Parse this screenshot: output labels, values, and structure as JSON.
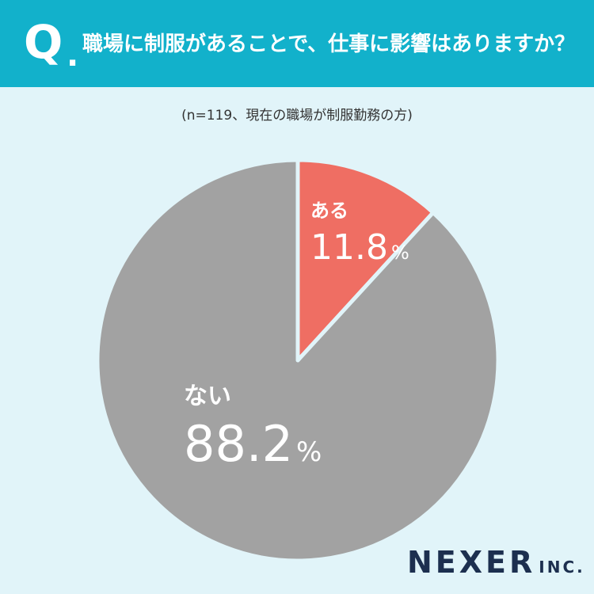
{
  "header": {
    "q_mark": "Q",
    "q_dot": ".",
    "question": "職場に制服があることで、仕事に影響はありますか？"
  },
  "note": "(n=119、現在の職場が制服勤務の方)",
  "colors": {
    "header": "#12b1cb",
    "background": "#e1f4f9",
    "aru": "#ef6e63",
    "nai": "#a2a2a2"
  },
  "chart_data": {
    "type": "pie",
    "title": "職場に制服があることで、仕事に影響はありますか？",
    "slices": [
      {
        "label": "ある",
        "value": 11.8,
        "value_text": "11.8",
        "unit": "%",
        "color": "#ef6e63"
      },
      {
        "label": "ない",
        "value": 88.2,
        "value_text": "88.2",
        "unit": "%",
        "color": "#a2a2a2"
      }
    ]
  },
  "logo": {
    "main": "NEXER",
    "sub": "INC."
  }
}
